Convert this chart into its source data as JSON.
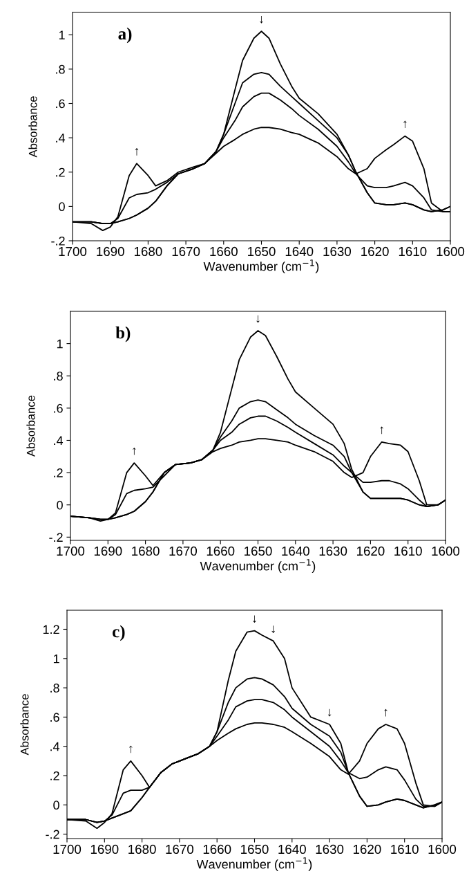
{
  "chart_data": [
    {
      "type": "line",
      "title": "a)",
      "xlabel": "Wavenumber (cm$^{−1}$)",
      "ylabel": "Absorbance",
      "x": [
        1700,
        1695,
        1692,
        1690,
        1688,
        1685,
        1683,
        1680,
        1678,
        1675,
        1672,
        1668,
        1665,
        1662,
        1660,
        1657,
        1655,
        1652,
        1650,
        1648,
        1645,
        1642,
        1640,
        1635,
        1630,
        1627,
        1625,
        1622,
        1620,
        1617,
        1615,
        1612,
        1610,
        1607,
        1605,
        1602,
        1600
      ],
      "series": [
        {
          "color": "#000000",
          "values": [
            -0.09,
            -0.09,
            -0.1,
            -0.1,
            -0.09,
            -0.07,
            -0.05,
            -0.01,
            0.03,
            0.12,
            0.19,
            0.22,
            0.25,
            0.32,
            0.42,
            0.68,
            0.85,
            0.98,
            1.02,
            0.98,
            0.83,
            0.7,
            0.63,
            0.54,
            0.42,
            0.3,
            0.2,
            0.08,
            0.02,
            0.01,
            0.01,
            0.02,
            0.01,
            -0.02,
            -0.03,
            -0.02,
            0.0
          ]
        },
        {
          "color": "#000000",
          "values": [
            -0.09,
            -0.09,
            -0.1,
            -0.1,
            -0.09,
            -0.07,
            -0.05,
            -0.01,
            0.03,
            0.12,
            0.19,
            0.22,
            0.25,
            0.32,
            0.42,
            0.6,
            0.72,
            0.77,
            0.78,
            0.77,
            0.7,
            0.64,
            0.6,
            0.5,
            0.4,
            0.3,
            0.2,
            0.08,
            0.02,
            0.01,
            0.01,
            0.02,
            0.01,
            -0.02,
            -0.03,
            -0.02,
            0.0
          ]
        },
        {
          "color": "#000000",
          "values": [
            -0.09,
            -0.09,
            -0.1,
            -0.1,
            -0.07,
            0.05,
            0.07,
            0.08,
            0.1,
            0.14,
            0.19,
            0.22,
            0.25,
            0.32,
            0.4,
            0.5,
            0.58,
            0.64,
            0.66,
            0.66,
            0.62,
            0.57,
            0.53,
            0.45,
            0.35,
            0.26,
            0.19,
            0.12,
            0.11,
            0.11,
            0.12,
            0.14,
            0.12,
            0.05,
            -0.02,
            -0.03,
            -0.03
          ]
        },
        {
          "color": "#000000",
          "values": [
            -0.09,
            -0.1,
            -0.14,
            -0.12,
            -0.06,
            0.18,
            0.25,
            0.18,
            0.12,
            0.15,
            0.2,
            0.23,
            0.25,
            0.31,
            0.35,
            0.39,
            0.42,
            0.45,
            0.46,
            0.46,
            0.45,
            0.43,
            0.42,
            0.37,
            0.29,
            0.22,
            0.19,
            0.22,
            0.28,
            0.33,
            0.36,
            0.41,
            0.38,
            0.22,
            0.02,
            -0.03,
            -0.03
          ]
        }
      ],
      "xlim": [
        1700,
        1600
      ],
      "xticks": [
        1700,
        1690,
        1680,
        1670,
        1660,
        1650,
        1640,
        1630,
        1620,
        1610,
        1600
      ],
      "ylim": [
        -0.2,
        1.13
      ],
      "yticks": [
        {
          "value": -0.2,
          "label": "-.2"
        },
        0,
        {
          "value": 0.2,
          "label": ".2"
        },
        {
          "value": 0.4,
          "label": ".4"
        },
        {
          "value": 0.6,
          "label": ".6"
        },
        {
          "value": 0.8,
          "label": ".8"
        },
        1
      ],
      "annotations": [
        {
          "text": "↓",
          "x": 1650,
          "y": 1.02
        },
        {
          "text": "↑",
          "x": 1683,
          "y": 0.25
        },
        {
          "text": "↑",
          "x": 1612,
          "y": 0.41
        }
      ],
      "grid": false,
      "legend": false
    },
    {
      "type": "line",
      "title": "b)",
      "xlabel": "Wavenumber (cm$^{−1}$)",
      "ylabel": "Absorbance",
      "x": [
        1700,
        1695,
        1692,
        1690,
        1688,
        1685,
        1683,
        1680,
        1678,
        1675,
        1672,
        1668,
        1665,
        1662,
        1660,
        1657,
        1655,
        1652,
        1650,
        1648,
        1645,
        1642,
        1640,
        1635,
        1630,
        1627,
        1625,
        1622,
        1620,
        1617,
        1615,
        1612,
        1610,
        1607,
        1605,
        1602,
        1600
      ],
      "series": [
        {
          "color": "#000000",
          "values": [
            -0.07,
            -0.08,
            -0.09,
            -0.09,
            -0.08,
            -0.06,
            -0.04,
            0.02,
            0.08,
            0.2,
            0.25,
            0.26,
            0.28,
            0.34,
            0.45,
            0.72,
            0.9,
            1.04,
            1.08,
            1.05,
            0.92,
            0.78,
            0.7,
            0.6,
            0.5,
            0.38,
            0.22,
            0.08,
            0.04,
            0.04,
            0.04,
            0.04,
            0.03,
            0.0,
            -0.01,
            0.0,
            0.03
          ]
        },
        {
          "color": "#000000",
          "values": [
            -0.07,
            -0.08,
            -0.09,
            -0.09,
            -0.08,
            -0.06,
            -0.04,
            0.02,
            0.08,
            0.2,
            0.25,
            0.26,
            0.28,
            0.34,
            0.42,
            0.52,
            0.6,
            0.64,
            0.65,
            0.64,
            0.59,
            0.54,
            0.5,
            0.43,
            0.37,
            0.3,
            0.2,
            0.08,
            0.04,
            0.04,
            0.04,
            0.04,
            0.03,
            0.0,
            -0.01,
            0.0,
            0.03
          ]
        },
        {
          "color": "#000000",
          "values": [
            -0.07,
            -0.08,
            -0.09,
            -0.09,
            -0.06,
            0.07,
            0.09,
            0.1,
            0.11,
            0.18,
            0.25,
            0.26,
            0.28,
            0.34,
            0.4,
            0.45,
            0.5,
            0.54,
            0.55,
            0.55,
            0.52,
            0.48,
            0.45,
            0.38,
            0.31,
            0.24,
            0.2,
            0.14,
            0.14,
            0.15,
            0.15,
            0.13,
            0.1,
            0.03,
            -0.01,
            0.0,
            0.03
          ]
        },
        {
          "color": "#000000",
          "values": [
            -0.07,
            -0.08,
            -0.1,
            -0.09,
            -0.05,
            0.2,
            0.26,
            0.18,
            0.12,
            0.2,
            0.25,
            0.26,
            0.28,
            0.33,
            0.35,
            0.37,
            0.39,
            0.4,
            0.41,
            0.41,
            0.4,
            0.39,
            0.37,
            0.33,
            0.27,
            0.2,
            0.17,
            0.2,
            0.3,
            0.39,
            0.38,
            0.37,
            0.33,
            0.15,
            0.0,
            0.0,
            0.03
          ]
        }
      ],
      "xlim": [
        1700,
        1600
      ],
      "xticks": [
        1700,
        1690,
        1680,
        1670,
        1660,
        1650,
        1640,
        1630,
        1620,
        1610,
        1600
      ],
      "ylim": [
        -0.22,
        1.2
      ],
      "yticks": [
        {
          "value": -0.2,
          "label": "-.2"
        },
        0,
        {
          "value": 0.2,
          "label": ".2"
        },
        {
          "value": 0.4,
          "label": ".4"
        },
        {
          "value": 0.6,
          "label": ".6"
        },
        {
          "value": 0.8,
          "label": ".8"
        },
        1
      ],
      "annotations": [
        {
          "text": "↓",
          "x": 1650,
          "y": 1.08
        },
        {
          "text": "↑",
          "x": 1683,
          "y": 0.26
        },
        {
          "text": "↑",
          "x": 1617,
          "y": 0.39
        }
      ],
      "grid": false,
      "legend": false
    },
    {
      "type": "line",
      "title": "c)",
      "xlabel": "Wavenumber (cm$^{−1}$)",
      "ylabel": "Absorbance",
      "x": [
        1700,
        1695,
        1692,
        1690,
        1688,
        1685,
        1683,
        1680,
        1678,
        1675,
        1672,
        1668,
        1665,
        1662,
        1660,
        1657,
        1655,
        1652,
        1650,
        1648,
        1645,
        1642,
        1640,
        1635,
        1630,
        1627,
        1625,
        1622,
        1620,
        1617,
        1615,
        1612,
        1610,
        1607,
        1605,
        1602,
        1600
      ],
      "series": [
        {
          "color": "#000000",
          "values": [
            -0.1,
            -0.1,
            -0.12,
            -0.11,
            -0.09,
            -0.06,
            -0.04,
            0.05,
            0.12,
            0.22,
            0.28,
            0.32,
            0.35,
            0.4,
            0.5,
            0.85,
            1.05,
            1.18,
            1.19,
            1.16,
            1.12,
            1.0,
            0.8,
            0.6,
            0.55,
            0.42,
            0.22,
            0.06,
            -0.01,
            0.0,
            0.02,
            0.04,
            0.03,
            0.0,
            -0.02,
            0.0,
            0.02
          ]
        },
        {
          "color": "#000000",
          "values": [
            -0.1,
            -0.1,
            -0.12,
            -0.11,
            -0.09,
            -0.06,
            -0.04,
            0.05,
            0.12,
            0.22,
            0.28,
            0.32,
            0.35,
            0.4,
            0.5,
            0.7,
            0.8,
            0.86,
            0.87,
            0.86,
            0.82,
            0.74,
            0.66,
            0.55,
            0.47,
            0.36,
            0.22,
            0.06,
            -0.01,
            0.0,
            0.02,
            0.04,
            0.03,
            0.0,
            -0.02,
            0.0,
            0.02
          ]
        },
        {
          "color": "#000000",
          "values": [
            -0.1,
            -0.1,
            -0.12,
            -0.11,
            -0.07,
            0.08,
            0.1,
            0.1,
            0.12,
            0.22,
            0.28,
            0.32,
            0.35,
            0.4,
            0.47,
            0.58,
            0.67,
            0.71,
            0.72,
            0.72,
            0.7,
            0.65,
            0.6,
            0.5,
            0.4,
            0.3,
            0.22,
            0.18,
            0.19,
            0.24,
            0.26,
            0.24,
            0.17,
            0.04,
            -0.01,
            -0.01,
            0.02
          ]
        },
        {
          "color": "#000000",
          "values": [
            -0.1,
            -0.11,
            -0.16,
            -0.12,
            -0.06,
            0.24,
            0.3,
            0.2,
            0.12,
            0.22,
            0.28,
            0.32,
            0.35,
            0.4,
            0.44,
            0.49,
            0.52,
            0.55,
            0.56,
            0.56,
            0.55,
            0.53,
            0.5,
            0.42,
            0.33,
            0.24,
            0.21,
            0.3,
            0.42,
            0.52,
            0.55,
            0.52,
            0.42,
            0.15,
            0.0,
            -0.01,
            0.02
          ]
        }
      ],
      "xlim": [
        1700,
        1600
      ],
      "xticks": [
        1700,
        1690,
        1680,
        1670,
        1660,
        1650,
        1640,
        1630,
        1620,
        1610,
        1600
      ],
      "ylim": [
        -0.23,
        1.33
      ],
      "yticks": [
        {
          "value": -0.2,
          "label": "-.2"
        },
        0,
        {
          "value": 0.2,
          "label": ".2"
        },
        {
          "value": 0.4,
          "label": ".4"
        },
        {
          "value": 0.6,
          "label": ".6"
        },
        {
          "value": 0.8,
          "label": ".8"
        },
        1,
        {
          "value": 1.2,
          "label": "1.2"
        }
      ],
      "annotations": [
        {
          "text": "↓",
          "x": 1650,
          "y": 1.19
        },
        {
          "text": "↓",
          "x": 1645,
          "y": 1.12
        },
        {
          "text": "↓",
          "x": 1630,
          "y": 0.55
        },
        {
          "text": "↑",
          "x": 1683,
          "y": 0.3
        },
        {
          "text": "↑",
          "x": 1615,
          "y": 0.55
        }
      ],
      "grid": false,
      "legend": false
    }
  ]
}
